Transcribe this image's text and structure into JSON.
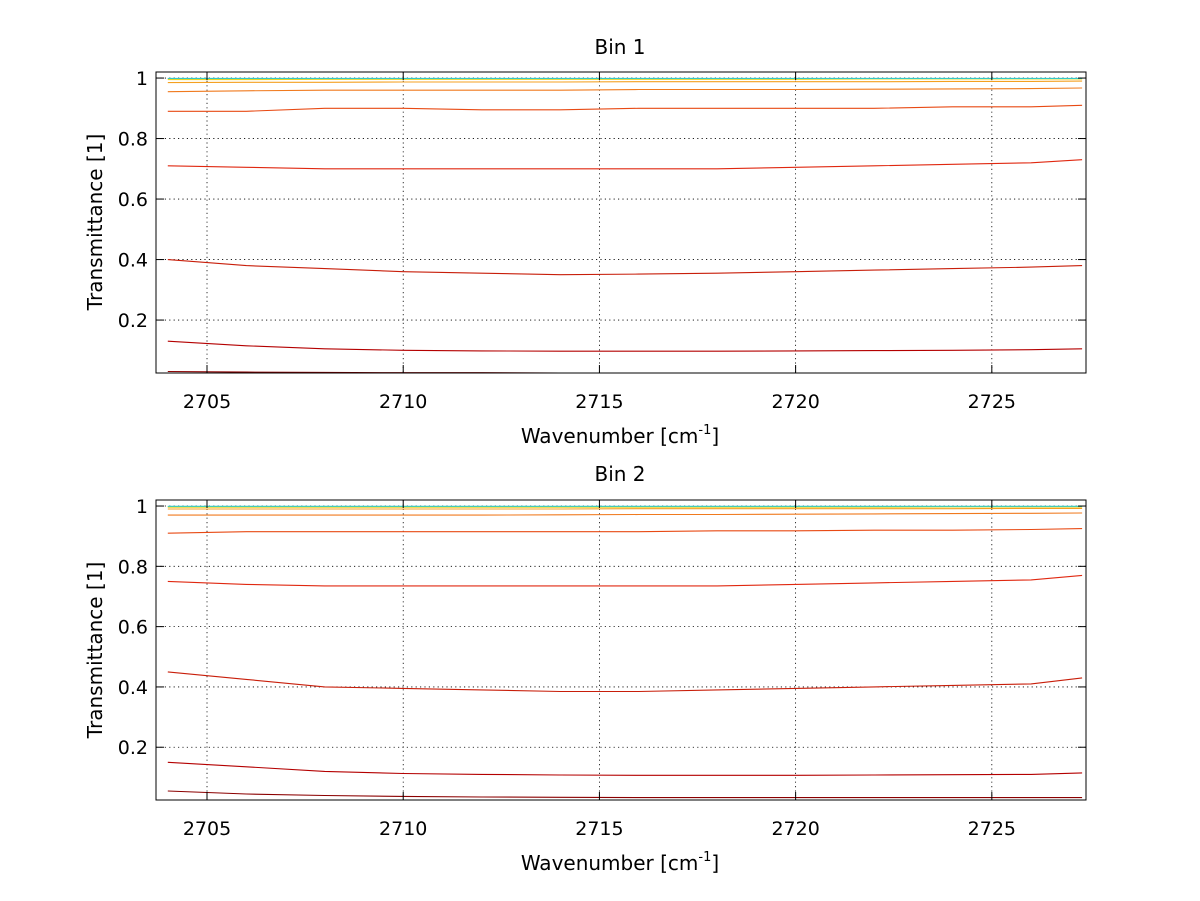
{
  "chart_data": [
    {
      "type": "line",
      "title": "Bin 1",
      "xlabel": {
        "main": "Wavenumber [cm",
        "sup": "-1",
        "end": "]"
      },
      "ylabel": "Transmittance [1]",
      "xlim": [
        2703.7,
        2727.4
      ],
      "ylim": [
        0.025,
        1.02
      ],
      "xticks": [
        2705,
        2710,
        2715,
        2720,
        2725
      ],
      "xtick_labels": [
        "2705",
        "2710",
        "2715",
        "2720",
        "2725"
      ],
      "yticks": [
        0.2,
        0.4,
        0.6,
        0.8,
        1
      ],
      "ytick_labels": [
        "0.2",
        "0.4",
        "0.6",
        "0.8",
        "1"
      ],
      "grid": true,
      "x": [
        2704,
        2706,
        2708,
        2710,
        2712,
        2714,
        2716,
        2718,
        2720,
        2722,
        2724,
        2726,
        2727.3
      ],
      "series": [
        {
          "color": "#8b0000",
          "values": [
            0.03,
            0.028,
            0.027,
            0.026,
            0.026,
            0.025,
            0.025,
            0.025,
            0.025,
            0.025,
            0.025,
            0.025,
            0.025
          ]
        },
        {
          "color": "#b40000",
          "values": [
            0.13,
            0.115,
            0.105,
            0.1,
            0.098,
            0.097,
            0.097,
            0.097,
            0.098,
            0.099,
            0.1,
            0.102,
            0.105
          ]
        },
        {
          "color": "#c81e0a",
          "values": [
            0.4,
            0.38,
            0.37,
            0.36,
            0.355,
            0.35,
            0.352,
            0.355,
            0.36,
            0.365,
            0.37,
            0.375,
            0.38
          ]
        },
        {
          "color": "#e02810",
          "values": [
            0.71,
            0.705,
            0.7,
            0.7,
            0.7,
            0.7,
            0.7,
            0.7,
            0.705,
            0.71,
            0.715,
            0.72,
            0.73
          ]
        },
        {
          "color": "#e84a14",
          "values": [
            0.89,
            0.89,
            0.9,
            0.9,
            0.895,
            0.895,
            0.9,
            0.9,
            0.9,
            0.9,
            0.905,
            0.905,
            0.91
          ]
        },
        {
          "color": "#f07a1e",
          "values": [
            0.955,
            0.958,
            0.96,
            0.96,
            0.96,
            0.96,
            0.962,
            0.962,
            0.962,
            0.963,
            0.964,
            0.965,
            0.967
          ]
        },
        {
          "color": "#f4a020",
          "values": [
            0.985,
            0.986,
            0.986,
            0.987,
            0.987,
            0.987,
            0.988,
            0.988,
            0.988,
            0.988,
            0.989,
            0.989,
            0.99
          ]
        },
        {
          "color": "#f0d020",
          "values": [
            0.995,
            0.995,
            0.996,
            0.996,
            0.996,
            0.996,
            0.996,
            0.996,
            0.996,
            0.997,
            0.997,
            0.997,
            0.997
          ]
        },
        {
          "color": "#c8e632",
          "values": [
            0.998,
            0.998,
            0.998,
            0.998,
            0.998,
            0.998,
            0.998,
            0.998,
            0.998,
            0.998,
            0.998,
            0.998,
            0.998
          ]
        },
        {
          "color": "#32c8c8",
          "values": [
            0.999,
            0.999,
            0.999,
            0.999,
            0.999,
            0.999,
            0.999,
            0.999,
            0.999,
            0.999,
            0.999,
            0.999,
            0.999
          ]
        }
      ]
    },
    {
      "type": "line",
      "title": "Bin 2",
      "xlabel": {
        "main": "Wavenumber [cm",
        "sup": "-1",
        "end": "]"
      },
      "ylabel": "Transmittance [1]",
      "xlim": [
        2703.7,
        2727.4
      ],
      "ylim": [
        0.025,
        1.02
      ],
      "xticks": [
        2705,
        2710,
        2715,
        2720,
        2725
      ],
      "xtick_labels": [
        "2705",
        "2710",
        "2715",
        "2720",
        "2725"
      ],
      "yticks": [
        0.2,
        0.4,
        0.6,
        0.8,
        1
      ],
      "ytick_labels": [
        "0.2",
        "0.4",
        "0.6",
        "0.8",
        "1"
      ],
      "grid": true,
      "x": [
        2704,
        2706,
        2708,
        2710,
        2712,
        2714,
        2716,
        2718,
        2720,
        2722,
        2724,
        2726,
        2727.3
      ],
      "series": [
        {
          "color": "#8b0000",
          "values": [
            0.055,
            0.045,
            0.04,
            0.037,
            0.035,
            0.034,
            0.033,
            0.033,
            0.033,
            0.033,
            0.033,
            0.033,
            0.033
          ]
        },
        {
          "color": "#b40000",
          "values": [
            0.15,
            0.135,
            0.12,
            0.113,
            0.11,
            0.108,
            0.107,
            0.107,
            0.107,
            0.108,
            0.109,
            0.11,
            0.115
          ]
        },
        {
          "color": "#c81e0a",
          "values": [
            0.45,
            0.425,
            0.4,
            0.395,
            0.39,
            0.385,
            0.385,
            0.39,
            0.395,
            0.4,
            0.405,
            0.41,
            0.43
          ]
        },
        {
          "color": "#e02810",
          "values": [
            0.75,
            0.74,
            0.735,
            0.735,
            0.735,
            0.735,
            0.735,
            0.735,
            0.74,
            0.745,
            0.75,
            0.755,
            0.77
          ]
        },
        {
          "color": "#e84a14",
          "values": [
            0.91,
            0.915,
            0.915,
            0.915,
            0.915,
            0.915,
            0.915,
            0.918,
            0.918,
            0.92,
            0.92,
            0.922,
            0.925
          ]
        },
        {
          "color": "#f07a1e",
          "values": [
            0.97,
            0.97,
            0.97,
            0.97,
            0.97,
            0.971,
            0.972,
            0.972,
            0.973,
            0.974,
            0.975,
            0.976,
            0.977
          ]
        },
        {
          "color": "#f4a020",
          "values": [
            0.99,
            0.99,
            0.99,
            0.99,
            0.99,
            0.99,
            0.991,
            0.991,
            0.991,
            0.991,
            0.991,
            0.992,
            0.992
          ]
        },
        {
          "color": "#f0d020",
          "values": [
            0.996,
            0.996,
            0.996,
            0.996,
            0.996,
            0.996,
            0.996,
            0.996,
            0.996,
            0.996,
            0.997,
            0.997,
            0.997
          ]
        },
        {
          "color": "#c8e632",
          "values": [
            0.998,
            0.998,
            0.998,
            0.998,
            0.998,
            0.998,
            0.998,
            0.998,
            0.998,
            0.998,
            0.998,
            0.998,
            0.998
          ]
        },
        {
          "color": "#32c8c8",
          "values": [
            0.999,
            0.999,
            0.999,
            0.999,
            0.999,
            0.999,
            0.999,
            0.999,
            0.999,
            0.999,
            0.999,
            0.999,
            0.999
          ]
        }
      ]
    }
  ]
}
